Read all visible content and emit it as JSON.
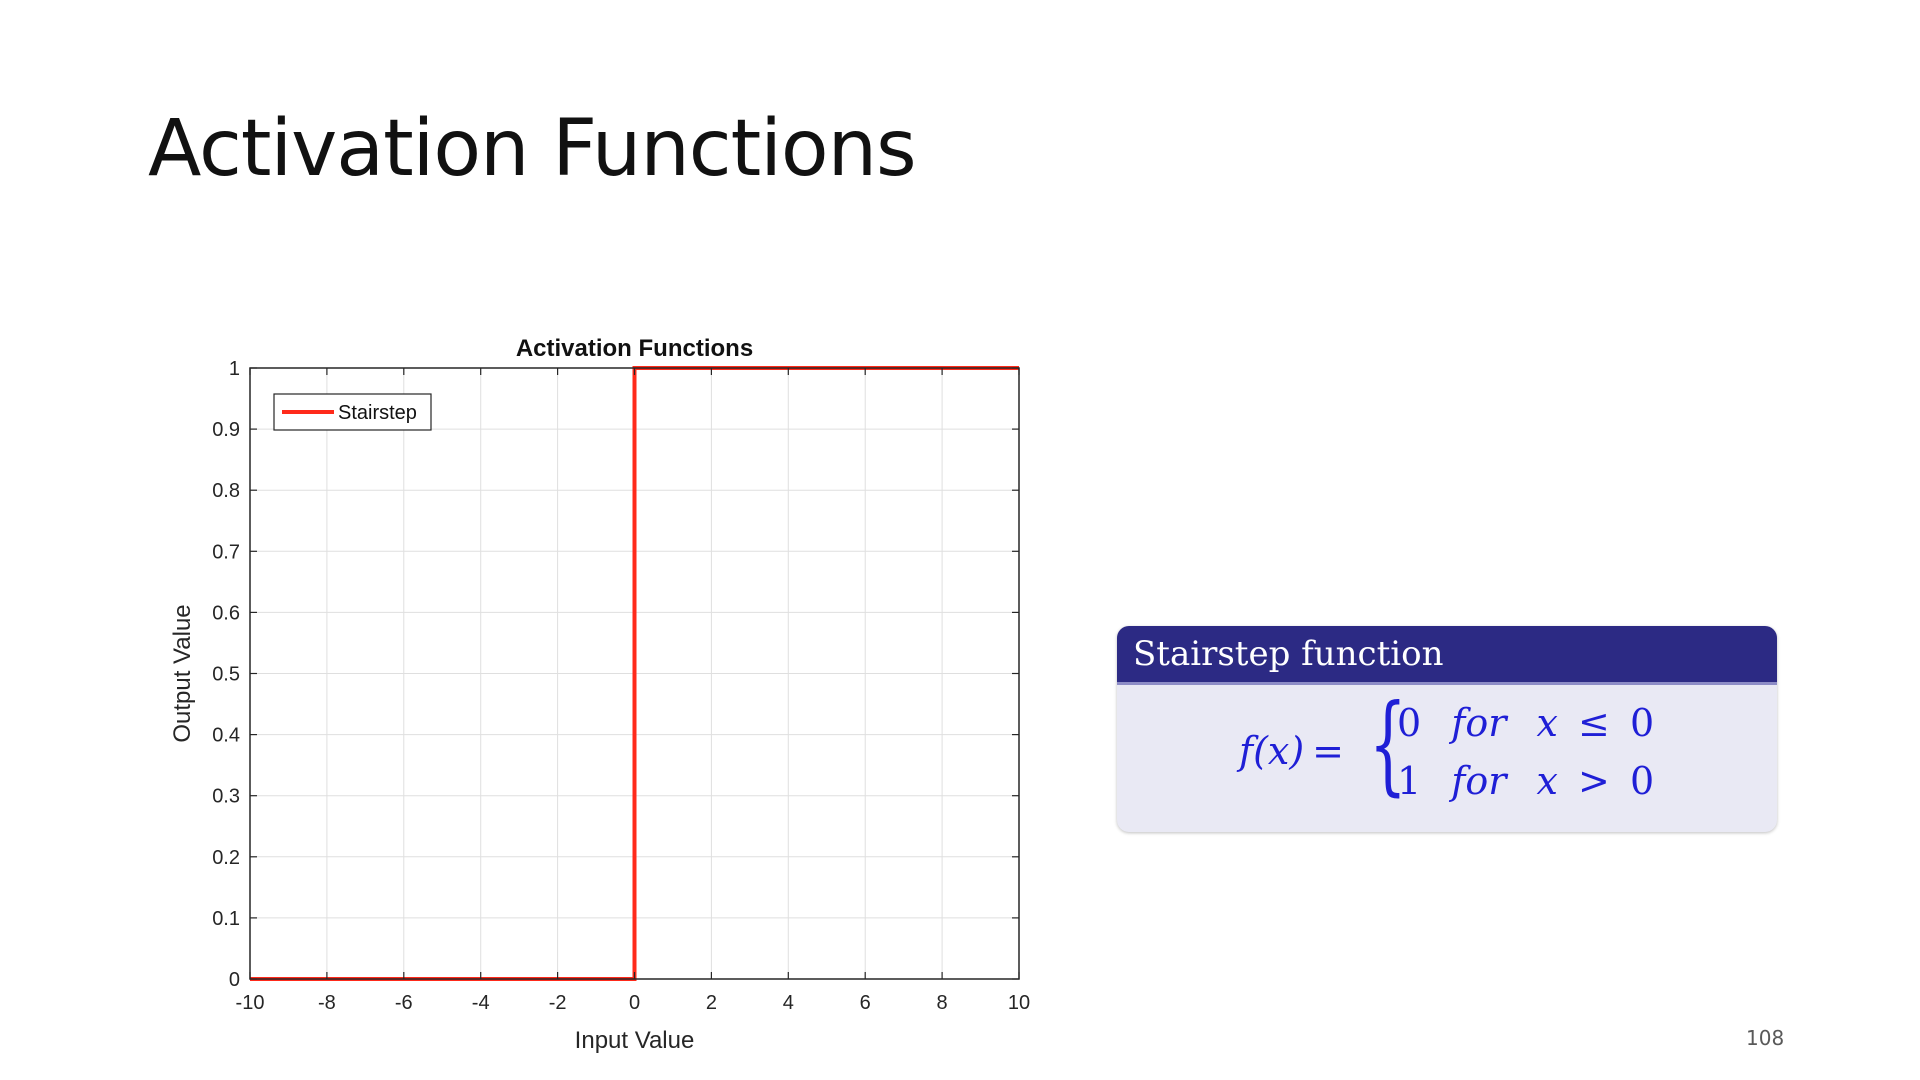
{
  "slide": {
    "title": "Activation Functions",
    "page_number": "108"
  },
  "chart_data": {
    "type": "line",
    "title": "Activation Functions",
    "xlabel": "Input Value",
    "ylabel": "Output Value",
    "xlim": [
      -10,
      10
    ],
    "ylim": [
      0,
      1
    ],
    "xticks": [
      -10,
      -8,
      -6,
      -4,
      -2,
      0,
      2,
      4,
      6,
      8,
      10
    ],
    "yticks": [
      0,
      0.1,
      0.2,
      0.3,
      0.4,
      0.5,
      0.6,
      0.7,
      0.8,
      0.9,
      1
    ],
    "grid": true,
    "legend": "top-left",
    "series": [
      {
        "name": "Stairstep",
        "color": "#ff2a1a",
        "x": [
          -10,
          0,
          0,
          10
        ],
        "y": [
          0,
          0,
          1,
          1
        ]
      }
    ]
  },
  "function_box": {
    "header": "Stairstep function",
    "lhs": "f(x)",
    "equals": "=",
    "brace": "{",
    "cases": [
      {
        "value": "0",
        "keyword": "for",
        "variable": "x",
        "operator": "≤",
        "bound": "0"
      },
      {
        "value": "1",
        "keyword": "for",
        "variable": "x",
        "operator": ">",
        "bound": "0"
      }
    ],
    "header_color": "#2c2a84",
    "body_color": "#e9e9f4",
    "text_color": "#1f1fd6"
  }
}
